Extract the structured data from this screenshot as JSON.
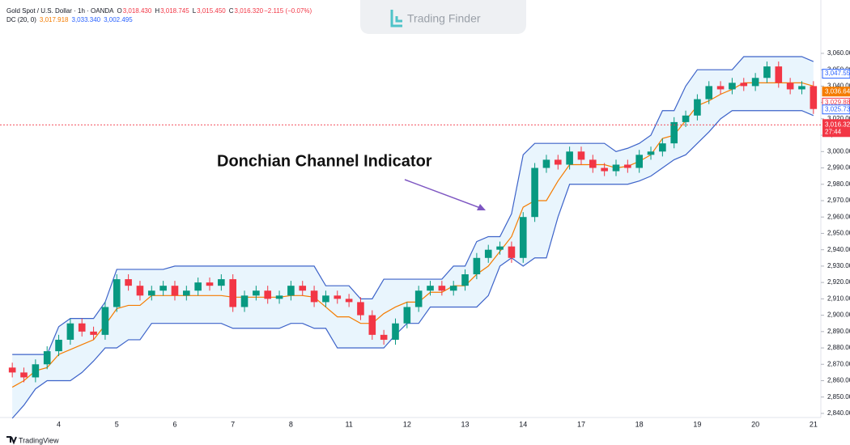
{
  "chart_data": {
    "type": "candlestick",
    "header": [
      [
        {
          "text": "Gold Spot / U.S. Dollar · 1h · OANDA",
          "color": "#131722"
        },
        {
          "text": "O",
          "color": "#131722"
        },
        {
          "text": "3,018.430",
          "color": "#f23645"
        },
        {
          "text": "H",
          "color": "#131722"
        },
        {
          "text": "3,018.745",
          "color": "#f23645"
        },
        {
          "text": "L",
          "color": "#131722"
        },
        {
          "text": "3,015.450",
          "color": "#f23645"
        },
        {
          "text": "C",
          "color": "#131722"
        },
        {
          "text": "3,016.320",
          "color": "#f23645"
        },
        {
          "text": "−2.115 (−0.07%)",
          "color": "#f23645"
        }
      ],
      [
        {
          "text": "DC (20, 0)",
          "color": "#131722"
        },
        {
          "text": "3,017.918",
          "color": "#f57c00"
        },
        {
          "text": "3,033.340",
          "color": "#2962ff"
        },
        {
          "text": "3,002.495",
          "color": "#2962ff"
        }
      ]
    ],
    "logo": "Trading Finder",
    "footer": "TradingView",
    "annotation": "Donchian Channel Indicator",
    "categories": [
      null,
      null,
      null,
      null,
      "4",
      null,
      null,
      null,
      null,
      "5",
      null,
      null,
      null,
      null,
      "6",
      null,
      null,
      null,
      null,
      "7",
      null,
      null,
      null,
      null,
      "8",
      null,
      null,
      null,
      null,
      "11",
      null,
      null,
      null,
      null,
      "12",
      null,
      null,
      null,
      null,
      "13",
      null,
      null,
      null,
      null,
      "14",
      null,
      null,
      null,
      null,
      "17",
      null,
      null,
      null,
      null,
      "18",
      null,
      null,
      null,
      null,
      "19",
      null,
      null,
      null,
      null,
      "20",
      null,
      null,
      null,
      null,
      "21"
    ],
    "open": [
      2868,
      2865,
      2862,
      2870,
      2878,
      2885,
      2895,
      2890,
      2888,
      2905,
      2922,
      2918,
      2912,
      2915,
      2918,
      2912,
      2915,
      2920,
      2918,
      2922,
      2905,
      2912,
      2915,
      2910,
      2912,
      2918,
      2915,
      2908,
      2912,
      2910,
      2908,
      2900,
      2888,
      2885,
      2895,
      2905,
      2915,
      2918,
      2915,
      2918,
      2925,
      2935,
      2940,
      2942,
      2935,
      2960,
      2990,
      2995,
      2992,
      3000,
      2995,
      2990,
      2988,
      2992,
      2990,
      2998,
      3000,
      3005,
      3018,
      3022,
      3032,
      3040,
      3038,
      3042,
      3040,
      3045,
      3052,
      3042,
      3038,
      3040
    ],
    "high": [
      2871,
      2868,
      2873,
      2881,
      2888,
      2898,
      2898,
      2893,
      2908,
      2925,
      2925,
      2921,
      2918,
      2921,
      2921,
      2918,
      2923,
      2923,
      2925,
      2925,
      2915,
      2918,
      2918,
      2915,
      2921,
      2921,
      2918,
      2915,
      2915,
      2913,
      2911,
      2903,
      2891,
      2898,
      2908,
      2918,
      2921,
      2921,
      2921,
      2928,
      2938,
      2943,
      2945,
      2945,
      2963,
      2993,
      2998,
      2998,
      3003,
      3003,
      2998,
      2993,
      2995,
      2995,
      3001,
      3003,
      3008,
      3021,
      3025,
      3035,
      3043,
      3043,
      3045,
      3045,
      3048,
      3055,
      3055,
      3045,
      3043,
      3043
    ],
    "low": [
      2862,
      2859,
      2859,
      2867,
      2875,
      2882,
      2887,
      2885,
      2885,
      2902,
      2915,
      2909,
      2909,
      2912,
      2909,
      2909,
      2912,
      2915,
      2915,
      2902,
      2902,
      2909,
      2907,
      2907,
      2909,
      2912,
      2905,
      2905,
      2907,
      2905,
      2897,
      2885,
      2882,
      2882,
      2892,
      2902,
      2912,
      2912,
      2912,
      2915,
      2922,
      2932,
      2937,
      2932,
      2932,
      2957,
      2987,
      2989,
      2989,
      2992,
      2987,
      2985,
      2985,
      2987,
      2987,
      2995,
      2997,
      3002,
      3015,
      3019,
      3029,
      3035,
      3035,
      3037,
      3037,
      3042,
      3039,
      3035,
      3035,
      3023
    ],
    "close": [
      2865,
      2862,
      2870,
      2878,
      2885,
      2895,
      2890,
      2888,
      2905,
      2922,
      2918,
      2912,
      2915,
      2918,
      2912,
      2915,
      2920,
      2918,
      2922,
      2905,
      2912,
      2915,
      2910,
      2912,
      2918,
      2915,
      2908,
      2912,
      2910,
      2908,
      2900,
      2888,
      2885,
      2895,
      2905,
      2915,
      2918,
      2915,
      2918,
      2925,
      2935,
      2940,
      2942,
      2935,
      2960,
      2990,
      2995,
      2992,
      3000,
      2995,
      2990,
      2988,
      2992,
      2990,
      2998,
      3000,
      3005,
      3018,
      3022,
      3032,
      3040,
      3038,
      3042,
      3040,
      3045,
      3052,
      3042,
      3038,
      3040,
      3026
    ],
    "up_color": "#089981",
    "down_color": "#f23645",
    "channel": {
      "fill": "#e3f2fd",
      "upper": {
        "color": "#3d63c9",
        "values": [
          2876,
          2876,
          2876,
          2876,
          2893,
          2898,
          2898,
          2898,
          2908,
          2928,
          2928,
          2928,
          2928,
          2928,
          2930,
          2930,
          2930,
          2930,
          2930,
          2930,
          2930,
          2930,
          2930,
          2930,
          2930,
          2930,
          2930,
          2918,
          2918,
          2918,
          2910,
          2910,
          2922,
          2922,
          2922,
          2922,
          2922,
          2922,
          2930,
          2930,
          2945,
          2948,
          2948,
          2962,
          2998,
          3005,
          3005,
          3005,
          3005,
          3005,
          3005,
          3005,
          3000,
          3002,
          3005,
          3010,
          3025,
          3025,
          3040,
          3050,
          3050,
          3050,
          3050,
          3058,
          3058,
          3058,
          3058,
          3058,
          3058,
          3055
        ]
      },
      "basis": {
        "color": "#f57c00",
        "values": [
          2856,
          2860,
          2866,
          2868,
          2876,
          2879,
          2882,
          2885,
          2894,
          2904,
          2906,
          2906,
          2912,
          2912,
          2912,
          2912,
          2912,
          2912,
          2912,
          2911,
          2911,
          2911,
          2911,
          2911,
          2912,
          2912,
          2911,
          2905,
          2899,
          2899,
          2895,
          2895,
          2901,
          2905,
          2908,
          2908,
          2914,
          2914,
          2918,
          2918,
          2925,
          2930,
          2939,
          2948,
          2966,
          2970,
          2970,
          2982,
          2992,
          2992,
          2992,
          2992,
          2990,
          2991,
          2994,
          2998,
          3008,
          3010,
          3019,
          3028,
          3031,
          3035,
          3038,
          3042,
          3042,
          3042,
          3042,
          3042,
          3042,
          3040
        ]
      },
      "lower": {
        "color": "#3d63c9",
        "values": [
          2837,
          2845,
          2855,
          2860,
          2860,
          2860,
          2865,
          2872,
          2880,
          2880,
          2885,
          2885,
          2895,
          2895,
          2895,
          2895,
          2895,
          2895,
          2895,
          2892,
          2892,
          2892,
          2892,
          2892,
          2895,
          2895,
          2892,
          2892,
          2880,
          2880,
          2880,
          2880,
          2880,
          2888,
          2895,
          2895,
          2905,
          2905,
          2905,
          2905,
          2905,
          2912,
          2930,
          2935,
          2930,
          2935,
          2935,
          2960,
          2980,
          2980,
          2980,
          2980,
          2980,
          2980,
          2982,
          2985,
          2990,
          2995,
          2998,
          3005,
          3012,
          3020,
          3025,
          3025,
          3025,
          3025,
          3025,
          3025,
          3025,
          3022
        ]
      }
    },
    "ylim": [
      2837.5,
      3092.6
    ],
    "yticks": [
      {
        "value": 2840,
        "label": "2,840.00"
      },
      {
        "value": 2850,
        "label": "2,850.00"
      },
      {
        "value": 2860,
        "label": "2,860.00"
      },
      {
        "value": 2870,
        "label": "2,870.00"
      },
      {
        "value": 2880,
        "label": "2,880.00"
      },
      {
        "value": 2890,
        "label": "2,890.00"
      },
      {
        "value": 2900,
        "label": "2,900.00"
      },
      {
        "value": 2910,
        "label": "2,910.00"
      },
      {
        "value": 2920,
        "label": "2,920.00"
      },
      {
        "value": 2930,
        "label": "2,930.00"
      },
      {
        "value": 2940,
        "label": "2,940.00"
      },
      {
        "value": 2950,
        "label": "2,950.00"
      },
      {
        "value": 2960,
        "label": "2,960.00"
      },
      {
        "value": 2970,
        "label": "2,970.00"
      },
      {
        "value": 2980,
        "label": "2,980.00"
      },
      {
        "value": 2990,
        "label": "2,990.00"
      },
      {
        "value": 3000,
        "label": "3,000.00"
      },
      {
        "value": 3010,
        "label": "3,010.00"
      },
      {
        "value": 3020,
        "label": "3,020.00"
      },
      {
        "value": 3030,
        "label": "3,030.00"
      },
      {
        "value": 3040,
        "label": "3,040.00"
      },
      {
        "value": 3050,
        "label": "3,050.00"
      },
      {
        "value": 3060,
        "label": "3,060.00"
      }
    ],
    "price_labels": [
      {
        "value": 3047.55,
        "label": "3,047.55",
        "color": "#2962ff"
      },
      {
        "value": 3036.64,
        "label": "3,036.64",
        "color": "#f57c00"
      },
      {
        "value": 3029.88,
        "label": "3,029.88",
        "color": "#f23645"
      },
      {
        "value": 3025.73,
        "label": "3,025.73",
        "color": "#2962ff"
      }
    ],
    "last_price": {
      "value": 3016.32,
      "label": "3,016.32",
      "countdown": "27:44",
      "color": "#f23645"
    }
  }
}
